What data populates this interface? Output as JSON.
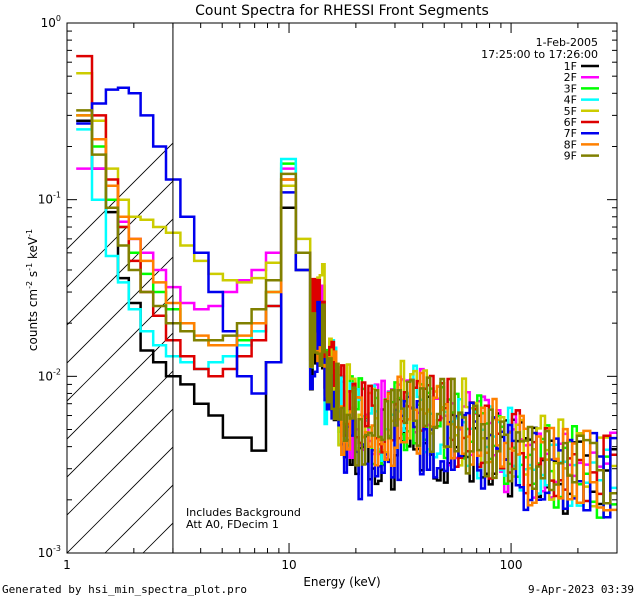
{
  "chart_data": {
    "type": "line",
    "title": "Count Spectra for RHESSI Front Segments",
    "xlabel": "Energy (keV)",
    "ylabel_parts": [
      "counts cm",
      "-2",
      " s",
      "-1",
      " keV",
      "-1"
    ],
    "xscale": "log",
    "yscale": "log",
    "xlim": [
      1,
      300
    ],
    "ylim": [
      0.001,
      1
    ],
    "x_ticks": [
      {
        "value": 1,
        "label": "1"
      },
      {
        "value": 10,
        "label": "10"
      },
      {
        "value": 100,
        "label": "100"
      }
    ],
    "y_ticks": [
      {
        "value": 0.001,
        "base": "10",
        "exp": "-3"
      },
      {
        "value": 0.01,
        "base": "10",
        "exp": "-2"
      },
      {
        "value": 0.1,
        "base": "10",
        "exp": "-1"
      },
      {
        "value": 1,
        "base": "10",
        "exp": "0"
      }
    ],
    "attenuator_region_keV": [
      1,
      3
    ],
    "header": [
      "1-Feb-2005",
      "17:25:00 to 17:26:00"
    ],
    "annotations": [
      "Includes Background",
      "Att A0, FDecim 1"
    ],
    "series": [
      {
        "name": "1F",
        "color": "#000000",
        "values": [
          0.28,
          0.15,
          0.085,
          0.036,
          0.026,
          0.014,
          0.012,
          0.01,
          0.009,
          0.007,
          0.006,
          0.0045,
          0.0045,
          0.0038,
          0.012,
          0.09,
          0.04,
          0.015,
          0.008,
          0.005,
          0.004,
          0.004,
          0.0045,
          0.0045,
          0.0042,
          0.0042,
          0.004,
          0.0034,
          0.0031,
          0.0028,
          0.0028
        ]
      },
      {
        "name": "2F",
        "color": "#ff00ff",
        "values": [
          0.15,
          0.15,
          0.1,
          0.075,
          0.06,
          0.05,
          0.04,
          0.032,
          0.026,
          0.024,
          0.025,
          0.03,
          0.035,
          0.04,
          0.05,
          0.15,
          0.05,
          0.02,
          0.01,
          0.006,
          0.0055,
          0.0055,
          0.0065,
          0.0065,
          0.0055,
          0.005,
          0.0045,
          0.0038,
          0.0033,
          0.003,
          0.0028
        ]
      },
      {
        "name": "3F",
        "color": "#00ff00",
        "values": [
          0.3,
          0.2,
          0.1,
          0.07,
          0.05,
          0.038,
          0.03,
          0.024,
          0.02,
          0.016,
          0.015,
          0.015,
          0.016,
          0.018,
          0.03,
          0.16,
          0.05,
          0.02,
          0.009,
          0.006,
          0.0055,
          0.0055,
          0.0065,
          0.0065,
          0.0055,
          0.005,
          0.0045,
          0.0038,
          0.0033,
          0.003,
          0.0028
        ]
      },
      {
        "name": "4F",
        "color": "#00ffff",
        "values": [
          0.25,
          0.1,
          0.048,
          0.034,
          0.024,
          0.018,
          0.015,
          0.013,
          0.012,
          0.011,
          0.012,
          0.013,
          0.015,
          0.018,
          0.025,
          0.17,
          0.05,
          0.02,
          0.009,
          0.006,
          0.0055,
          0.0055,
          0.0065,
          0.0065,
          0.0055,
          0.005,
          0.0045,
          0.0038,
          0.0033,
          0.003,
          0.0028
        ]
      },
      {
        "name": "5F",
        "color": "#cccc00",
        "values": [
          0.52,
          0.28,
          0.15,
          0.1,
          0.08,
          0.077,
          0.07,
          0.065,
          0.055,
          0.045,
          0.038,
          0.035,
          0.034,
          0.036,
          0.044,
          0.12,
          0.06,
          0.025,
          0.011,
          0.007,
          0.006,
          0.006,
          0.007,
          0.007,
          0.006,
          0.0055,
          0.005,
          0.0042,
          0.0036,
          0.0033,
          0.003
        ]
      },
      {
        "name": "6F",
        "color": "#dd0000",
        "values": [
          0.65,
          0.3,
          0.13,
          0.07,
          0.045,
          0.03,
          0.022,
          0.016,
          0.013,
          0.011,
          0.01,
          0.011,
          0.013,
          0.016,
          0.025,
          0.13,
          0.05,
          0.022,
          0.01,
          0.0065,
          0.0055,
          0.0055,
          0.0065,
          0.0065,
          0.0055,
          0.005,
          0.0045,
          0.0038,
          0.0033,
          0.003,
          0.0028
        ]
      },
      {
        "name": "7F",
        "color": "#0000ee",
        "values": [
          0.27,
          0.35,
          0.42,
          0.43,
          0.4,
          0.3,
          0.2,
          0.13,
          0.08,
          0.05,
          0.03,
          0.018,
          0.01,
          0.008,
          0.012,
          0.11,
          0.04,
          0.015,
          0.007,
          0.004,
          0.0035,
          0.004,
          0.0045,
          0.0045,
          0.0042,
          0.0042,
          0.004,
          0.0034,
          0.0031,
          0.0028,
          0.0028
        ]
      },
      {
        "name": "8F",
        "color": "#ff8000",
        "values": [
          0.3,
          0.22,
          0.12,
          0.08,
          0.06,
          0.045,
          0.034,
          0.026,
          0.02,
          0.017,
          0.015,
          0.015,
          0.017,
          0.02,
          0.03,
          0.13,
          0.05,
          0.02,
          0.009,
          0.006,
          0.0055,
          0.0055,
          0.0065,
          0.0065,
          0.0055,
          0.005,
          0.0045,
          0.0038,
          0.0033,
          0.003,
          0.0028
        ]
      },
      {
        "name": "9F",
        "color": "#808000",
        "values": [
          0.32,
          0.18,
          0.09,
          0.055,
          0.04,
          0.03,
          0.025,
          0.02,
          0.018,
          0.016,
          0.016,
          0.017,
          0.02,
          0.024,
          0.035,
          0.14,
          0.05,
          0.02,
          0.009,
          0.006,
          0.0055,
          0.0055,
          0.0065,
          0.0065,
          0.0055,
          0.005,
          0.0045,
          0.0038,
          0.0033,
          0.003,
          0.0028
        ]
      }
    ],
    "energies_keV": [
      1.2,
      1.4,
      1.6,
      1.8,
      2.0,
      2.3,
      2.6,
      3.0,
      3.5,
      4.0,
      4.7,
      5.4,
      6.3,
      7.3,
      8.5,
      10.0,
      11.5,
      13.5,
      15.5,
      18.0,
      22.0,
      27.0,
      33.0,
      40.0,
      50.0,
      62.0,
      80.0,
      100.0,
      130.0,
      170.0,
      230.0
    ]
  },
  "footer": {
    "left": "Generated by hsi_min_spectra_plot.pro",
    "right": "9-Apr-2023 03:39"
  }
}
